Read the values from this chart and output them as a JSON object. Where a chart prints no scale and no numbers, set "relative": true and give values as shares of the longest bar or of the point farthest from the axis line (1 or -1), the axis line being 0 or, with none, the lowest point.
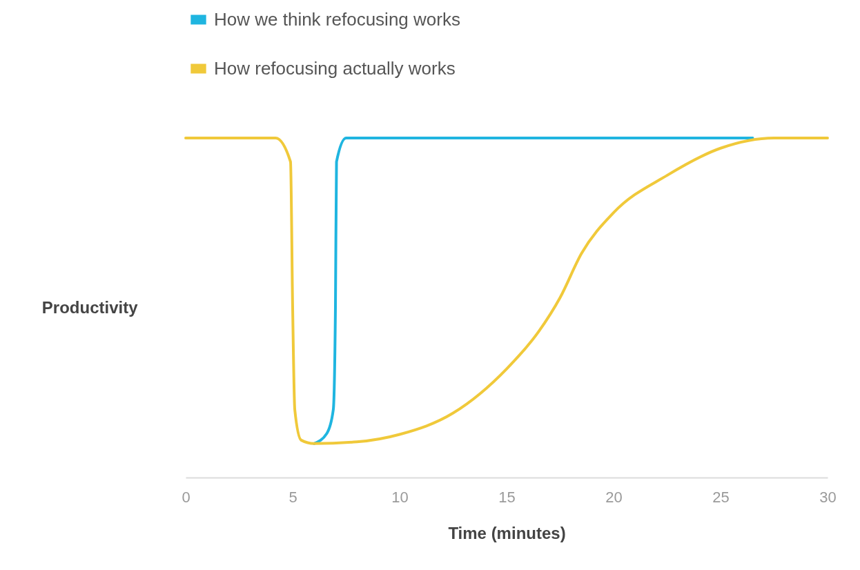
{
  "chart_data": {
    "type": "line",
    "xlabel": "Time (minutes)",
    "ylabel": "Productivity",
    "relative": true,
    "legend": "top",
    "xlim": [
      0,
      30
    ],
    "xticks": [
      0,
      5,
      10,
      15,
      20,
      25,
      30
    ],
    "line_style": "solid",
    "series": [
      {
        "name": "How we think refocusing works",
        "color": "#1fb5e0",
        "x": [
          6,
          6.6,
          6.9,
          7.0,
          7.05,
          7.5,
          26.5
        ],
        "values": [
          0.1,
          0.13,
          0.2,
          0.5,
          0.93,
          1,
          1
        ]
      },
      {
        "name": "How refocusing actually works",
        "color": "#f0c93a",
        "x": [
          0,
          4.2,
          4.9,
          5.0,
          5.1,
          5.4,
          6,
          8,
          10,
          12.5,
          15,
          16.5,
          17.5,
          18.5,
          20,
          22.5,
          25,
          27.5,
          30
        ],
        "values": [
          1,
          1,
          0.93,
          0.5,
          0.2,
          0.11,
          0.1,
          0.105,
          0.127,
          0.19,
          0.32,
          0.43,
          0.53,
          0.66,
          0.78,
          0.89,
          0.97,
          1,
          1
        ]
      }
    ]
  }
}
